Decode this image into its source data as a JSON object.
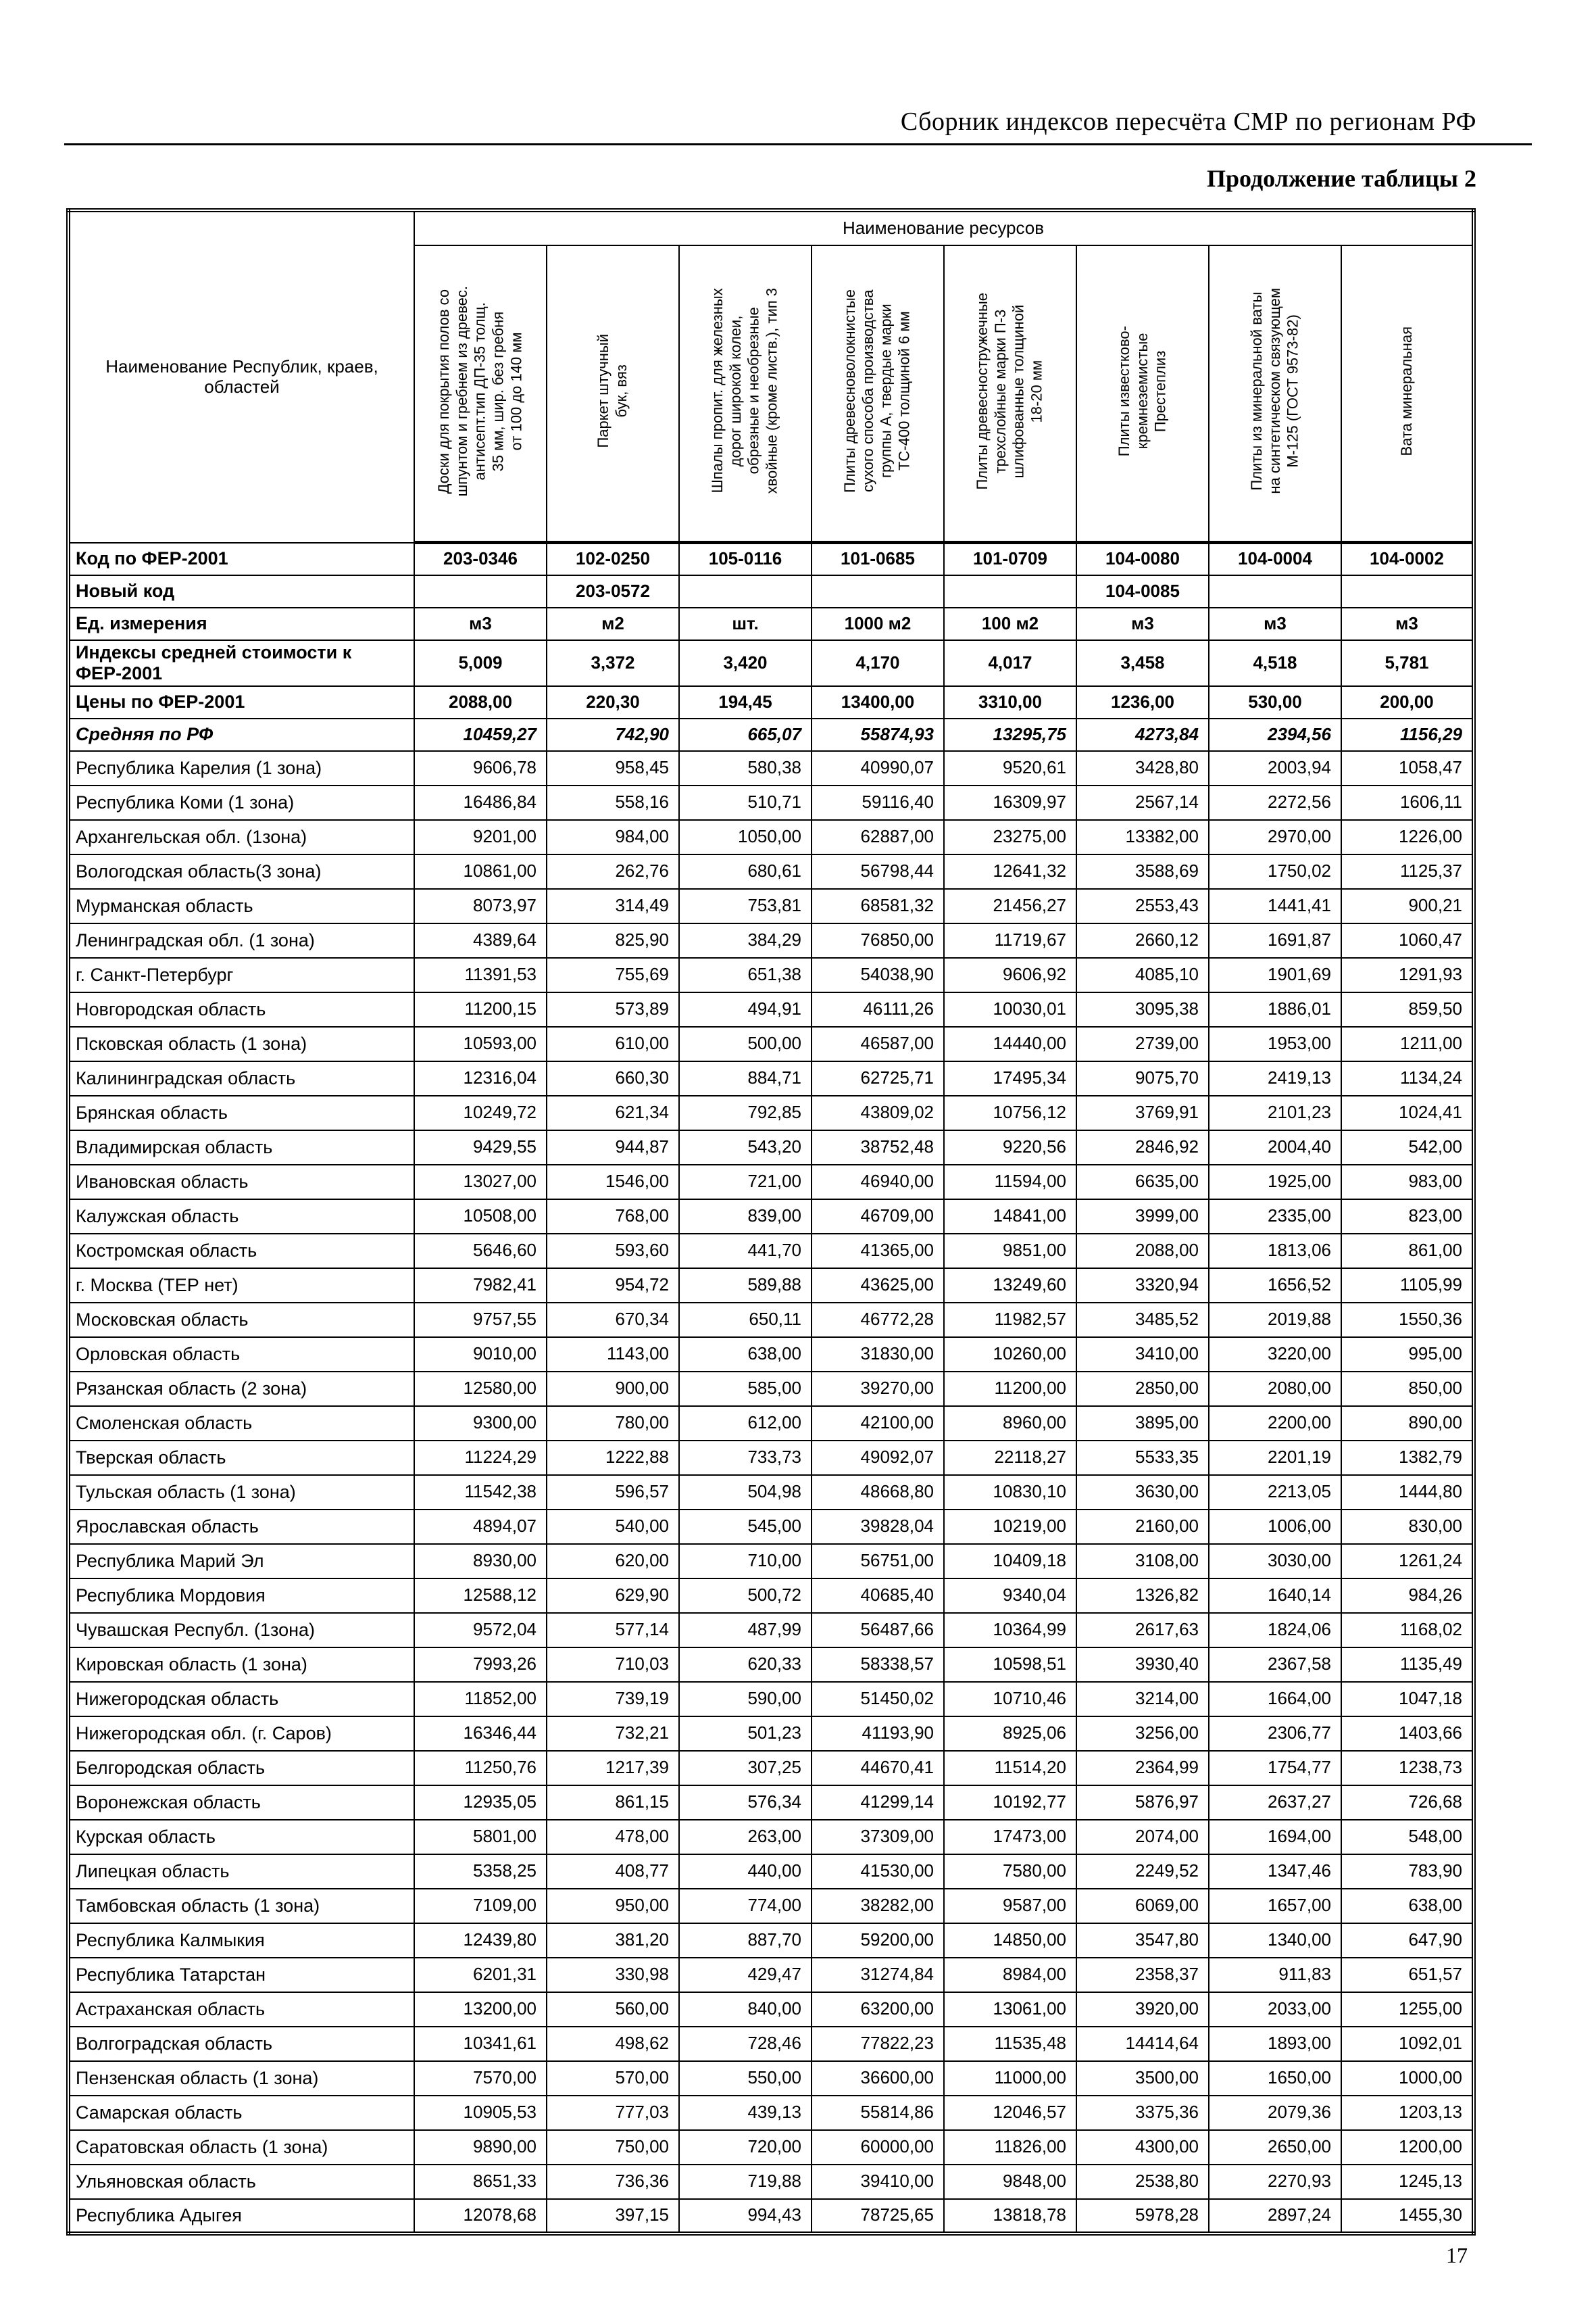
{
  "page": {
    "header_title": "Сборник индексов пересчёта СМР по регионам РФ",
    "table_caption": "Продолжение таблицы 2",
    "page_number": "17"
  },
  "table": {
    "first_col_header": "Наименование Республик, краев,\nобластей",
    "resources_header": "Наименование ресурсов",
    "columns": [
      "Доски для покрытия полов со\nшпунтом и гребнем из древес.\nантисепт.тип ДП-35 толщ.\n35 мм, шир. без гребня\nот 100 до 140 мм",
      "Паркет штучный\nбук, вяз",
      "Шпалы пропит. для железных\nдорог широкой колеи,\nобрезные и необрезные\nхвойные (кроме листв.), тип 3",
      "Плиты древесноволокнистые\nсухого способа производства\nгруппы А, твердые марки\nТС-400 толщиной 6 мм",
      "Плиты древесностружечные\nтрехслойные марки П-3\nшлифованные толщиной\n18-20 мм",
      "Плиты известково-\nкремнеземистые\nПрестеплиз",
      "Плиты из минеральной ваты\nна синтетическом связующем\nМ-125 (ГОСТ 9573-82)",
      "Вата минеральная"
    ],
    "meta_rows": [
      {
        "key": "row-code",
        "label": "Код по ФЕР-2001",
        "values": [
          "203-0346",
          "102-0250",
          "105-0116",
          "101-0685",
          "101-0709",
          "104-0080",
          "104-0004",
          "104-0002"
        ]
      },
      {
        "key": "row-newcode",
        "label": "Новый код",
        "values": [
          "",
          "203-0572",
          "",
          "",
          "",
          "104-0085",
          "",
          ""
        ]
      },
      {
        "key": "row-units",
        "label": "Ед. измерения",
        "values": [
          "м3",
          "м2",
          "шт.",
          "1000 м2",
          "100 м2",
          "м3",
          "м3",
          "м3"
        ]
      },
      {
        "key": "row-index",
        "label": "Индексы средней стоимости к ФЕР-2001",
        "values": [
          "5,009",
          "3,372",
          "3,420",
          "4,170",
          "4,017",
          "3,458",
          "4,518",
          "5,781"
        ]
      },
      {
        "key": "row-price",
        "label": "Цены по ФЕР-2001",
        "values": [
          "2088,00",
          "220,30",
          "194,45",
          "13400,00",
          "3310,00",
          "1236,00",
          "530,00",
          "200,00"
        ]
      },
      {
        "key": "row-avg",
        "label": "Средняя по РФ",
        "values": [
          "10459,27",
          "742,90",
          "665,07",
          "55874,93",
          "13295,75",
          "4273,84",
          "2394,56",
          "1156,29"
        ]
      }
    ],
    "regions": [
      {
        "name": "Республика Карелия (1 зона)",
        "values": [
          "9606,78",
          "958,45",
          "580,38",
          "40990,07",
          "9520,61",
          "3428,80",
          "2003,94",
          "1058,47"
        ]
      },
      {
        "name": "Республика Коми (1 зона)",
        "values": [
          "16486,84",
          "558,16",
          "510,71",
          "59116,40",
          "16309,97",
          "2567,14",
          "2272,56",
          "1606,11"
        ]
      },
      {
        "name": "Архангельская обл. (1зона)",
        "values": [
          "9201,00",
          "984,00",
          "1050,00",
          "62887,00",
          "23275,00",
          "13382,00",
          "2970,00",
          "1226,00"
        ]
      },
      {
        "name": "Вологодская область(3 зона)",
        "values": [
          "10861,00",
          "262,76",
          "680,61",
          "56798,44",
          "12641,32",
          "3588,69",
          "1750,02",
          "1125,37"
        ]
      },
      {
        "name": "Мурманская область",
        "values": [
          "8073,97",
          "314,49",
          "753,81",
          "68581,32",
          "21456,27",
          "2553,43",
          "1441,41",
          "900,21"
        ]
      },
      {
        "name": "Ленинградская обл. (1 зона)",
        "values": [
          "4389,64",
          "825,90",
          "384,29",
          "76850,00",
          "11719,67",
          "2660,12",
          "1691,87",
          "1060,47"
        ]
      },
      {
        "name": "г. Санкт-Петербург",
        "values": [
          "11391,53",
          "755,69",
          "651,38",
          "54038,90",
          "9606,92",
          "4085,10",
          "1901,69",
          "1291,93"
        ]
      },
      {
        "name": "Новгородская область",
        "values": [
          "11200,15",
          "573,89",
          "494,91",
          "46111,26",
          "10030,01",
          "3095,38",
          "1886,01",
          "859,50"
        ]
      },
      {
        "name": "Псковская область (1 зона)",
        "values": [
          "10593,00",
          "610,00",
          "500,00",
          "46587,00",
          "14440,00",
          "2739,00",
          "1953,00",
          "1211,00"
        ]
      },
      {
        "name": "Калининградская область",
        "values": [
          "12316,04",
          "660,30",
          "884,71",
          "62725,71",
          "17495,34",
          "9075,70",
          "2419,13",
          "1134,24"
        ]
      },
      {
        "name": "Брянская область",
        "values": [
          "10249,72",
          "621,34",
          "792,85",
          "43809,02",
          "10756,12",
          "3769,91",
          "2101,23",
          "1024,41"
        ]
      },
      {
        "name": "Владимирская область",
        "values": [
          "9429,55",
          "944,87",
          "543,20",
          "38752,48",
          "9220,56",
          "2846,92",
          "2004,40",
          "542,00"
        ]
      },
      {
        "name": "Ивановская область",
        "values": [
          "13027,00",
          "1546,00",
          "721,00",
          "46940,00",
          "11594,00",
          "6635,00",
          "1925,00",
          "983,00"
        ]
      },
      {
        "name": "Калужская область",
        "values": [
          "10508,00",
          "768,00",
          "839,00",
          "46709,00",
          "14841,00",
          "3999,00",
          "2335,00",
          "823,00"
        ]
      },
      {
        "name": "Костромская область",
        "values": [
          "5646,60",
          "593,60",
          "441,70",
          "41365,00",
          "9851,00",
          "2088,00",
          "1813,06",
          "861,00"
        ]
      },
      {
        "name": "г. Москва (ТЕР нет)",
        "values": [
          "7982,41",
          "954,72",
          "589,88",
          "43625,00",
          "13249,60",
          "3320,94",
          "1656,52",
          "1105,99"
        ]
      },
      {
        "name": "Московская  область",
        "values": [
          "9757,55",
          "670,34",
          "650,11",
          "46772,28",
          "11982,57",
          "3485,52",
          "2019,88",
          "1550,36"
        ]
      },
      {
        "name": "Орловская область",
        "values": [
          "9010,00",
          "1143,00",
          "638,00",
          "31830,00",
          "10260,00",
          "3410,00",
          "3220,00",
          "995,00"
        ]
      },
      {
        "name": "Рязанская область (2 зона)",
        "values": [
          "12580,00",
          "900,00",
          "585,00",
          "39270,00",
          "11200,00",
          "2850,00",
          "2080,00",
          "850,00"
        ]
      },
      {
        "name": "Смоленская область",
        "values": [
          "9300,00",
          "780,00",
          "612,00",
          "42100,00",
          "8960,00",
          "3895,00",
          "2200,00",
          "890,00"
        ]
      },
      {
        "name": "Тверская область",
        "values": [
          "11224,29",
          "1222,88",
          "733,73",
          "49092,07",
          "22118,27",
          "5533,35",
          "2201,19",
          "1382,79"
        ]
      },
      {
        "name": "Тульская область (1 зона)",
        "values": [
          "11542,38",
          "596,57",
          "504,98",
          "48668,80",
          "10830,10",
          "3630,00",
          "2213,05",
          "1444,80"
        ]
      },
      {
        "name": "Ярославская область",
        "values": [
          "4894,07",
          "540,00",
          "545,00",
          "39828,04",
          "10219,00",
          "2160,00",
          "1006,00",
          "830,00"
        ]
      },
      {
        "name": "Республика Марий Эл",
        "values": [
          "8930,00",
          "620,00",
          "710,00",
          "56751,00",
          "10409,18",
          "3108,00",
          "3030,00",
          "1261,24"
        ]
      },
      {
        "name": "Республика Мордовия",
        "values": [
          "12588,12",
          "629,90",
          "500,72",
          "40685,40",
          "9340,04",
          "1326,82",
          "1640,14",
          "984,26"
        ]
      },
      {
        "name": "Чувашская Республ. (1зона)",
        "values": [
          "9572,04",
          "577,14",
          "487,99",
          "56487,66",
          "10364,99",
          "2617,63",
          "1824,06",
          "1168,02"
        ]
      },
      {
        "name": "Кировская область (1 зона)",
        "values": [
          "7993,26",
          "710,03",
          "620,33",
          "58338,57",
          "10598,51",
          "3930,40",
          "2367,58",
          "1135,49"
        ]
      },
      {
        "name": "Нижегородская область",
        "values": [
          "11852,00",
          "739,19",
          "590,00",
          "51450,02",
          "10710,46",
          "3214,00",
          "1664,00",
          "1047,18"
        ]
      },
      {
        "name": "Нижегородская обл. (г. Саров)",
        "values": [
          "16346,44",
          "732,21",
          "501,23",
          "41193,90",
          "8925,06",
          "3256,00",
          "2306,77",
          "1403,66"
        ]
      },
      {
        "name": "Белгородская область",
        "values": [
          "11250,76",
          "1217,39",
          "307,25",
          "44670,41",
          "11514,20",
          "2364,99",
          "1754,77",
          "1238,73"
        ]
      },
      {
        "name": "Воронежская область",
        "values": [
          "12935,05",
          "861,15",
          "576,34",
          "41299,14",
          "10192,77",
          "5876,97",
          "2637,27",
          "726,68"
        ]
      },
      {
        "name": "Курская область",
        "values": [
          "5801,00",
          "478,00",
          "263,00",
          "37309,00",
          "17473,00",
          "2074,00",
          "1694,00",
          "548,00"
        ]
      },
      {
        "name": "Липецкая область",
        "values": [
          "5358,25",
          "408,77",
          "440,00",
          "41530,00",
          "7580,00",
          "2249,52",
          "1347,46",
          "783,90"
        ]
      },
      {
        "name": "Тамбовская область (1 зона)",
        "values": [
          "7109,00",
          "950,00",
          "774,00",
          "38282,00",
          "9587,00",
          "6069,00",
          "1657,00",
          "638,00"
        ]
      },
      {
        "name": "Республика Калмыкия",
        "values": [
          "12439,80",
          "381,20",
          "887,70",
          "59200,00",
          "14850,00",
          "3547,80",
          "1340,00",
          "647,90"
        ]
      },
      {
        "name": "Республика Татарстан",
        "values": [
          "6201,31",
          "330,98",
          "429,47",
          "31274,84",
          "8984,00",
          "2358,37",
          "911,83",
          "651,57"
        ]
      },
      {
        "name": "Астраханская область",
        "values": [
          "13200,00",
          "560,00",
          "840,00",
          "63200,00",
          "13061,00",
          "3920,00",
          "2033,00",
          "1255,00"
        ]
      },
      {
        "name": "Волгоградская область",
        "values": [
          "10341,61",
          "498,62",
          "728,46",
          "77822,23",
          "11535,48",
          "14414,64",
          "1893,00",
          "1092,01"
        ]
      },
      {
        "name": "Пензенская область (1 зона)",
        "values": [
          "7570,00",
          "570,00",
          "550,00",
          "36600,00",
          "11000,00",
          "3500,00",
          "1650,00",
          "1000,00"
        ]
      },
      {
        "name": "Самарская область",
        "values": [
          "10905,53",
          "777,03",
          "439,13",
          "55814,86",
          "12046,57",
          "3375,36",
          "2079,36",
          "1203,13"
        ]
      },
      {
        "name": "Саратовская область (1 зона)",
        "values": [
          "9890,00",
          "750,00",
          "720,00",
          "60000,00",
          "11826,00",
          "4300,00",
          "2650,00",
          "1200,00"
        ]
      },
      {
        "name": "Ульяновская область",
        "values": [
          "8651,33",
          "736,36",
          "719,88",
          "39410,00",
          "9848,00",
          "2538,80",
          "2270,93",
          "1245,13"
        ]
      },
      {
        "name": "Республика Адыгея",
        "values": [
          "12078,68",
          "397,15",
          "994,43",
          "78725,65",
          "13818,78",
          "5978,28",
          "2897,24",
          "1455,30"
        ]
      }
    ]
  }
}
